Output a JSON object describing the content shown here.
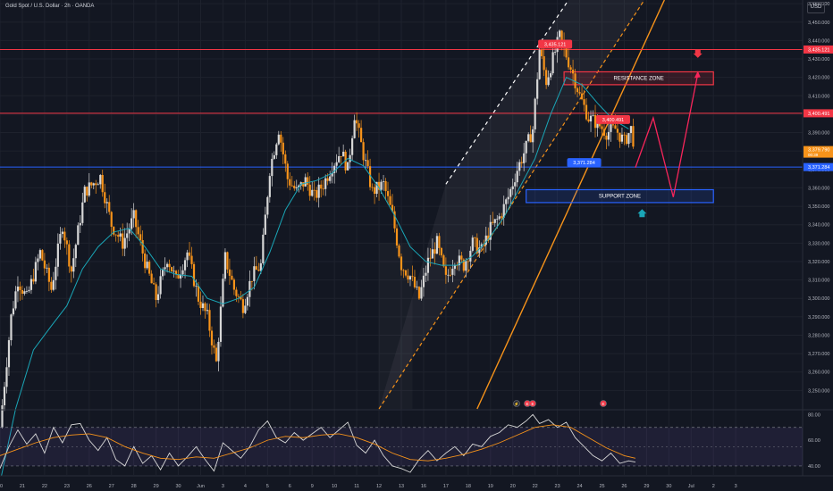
{
  "header": {
    "symbol_title": "Gold Spot / U.S. Dollar · 2h · OANDA",
    "currency": "USD"
  },
  "colors": {
    "background": "#131722",
    "grid": "#1e222d",
    "up_candle": "#d7d7d7",
    "down_candle": "#f7931a",
    "ma_line": "#1aa6b7",
    "red_line": "#f23645",
    "blue_line": "#2962ff",
    "projection": "#f7255a",
    "channel_orange": "#f7931a",
    "channel_white": "#ffffff",
    "rsi_white": "#d7d7d7",
    "rsi_orange": "#f7931a",
    "rsi_band": "#7e57c2"
  },
  "chart_data": [
    {
      "type": "candlestick",
      "title": "Gold Spot / U.S. Dollar · 2h · OANDA",
      "ylim": [
        3240,
        3462
      ],
      "y_ticks": [
        "3,460.000",
        "3,450.000",
        "3,440.000",
        "3,430.000",
        "3,420.000",
        "3,410.000",
        "3,400.000",
        "3,390.000",
        "3,380.000",
        "3,370.000",
        "3,360.000",
        "3,350.000",
        "3,340.000",
        "3,330.000",
        "3,320.000",
        "3,310.000",
        "3,300.000",
        "3,290.000",
        "3,280.000",
        "3,270.000",
        "3,260.000",
        "3,250.000"
      ],
      "x_ticks": [
        "20",
        "21",
        "22",
        "23",
        "26",
        "27",
        "28",
        "29",
        "30",
        "Jun",
        "3",
        "4",
        "5",
        "6",
        "9",
        "10",
        "11",
        "12",
        "13",
        "16",
        "17",
        "18",
        "19",
        "20",
        "22",
        "23",
        "24",
        "25",
        "26",
        "29",
        "30",
        "Jul",
        "2",
        "3"
      ],
      "close_path": [
        [
          20,
          3230
        ],
        [
          20.5,
          3290
        ],
        [
          20.8,
          3310
        ],
        [
          21.2,
          3300
        ],
        [
          21.8,
          3325
        ],
        [
          22.3,
          3305
        ],
        [
          22.8,
          3340
        ],
        [
          23.2,
          3315
        ],
        [
          23.8,
          3358
        ],
        [
          24.5,
          3366
        ],
        [
          25,
          3340
        ],
        [
          25.5,
          3330
        ],
        [
          26,
          3344
        ],
        [
          26.5,
          3320
        ],
        [
          27,
          3300
        ],
        [
          27.5,
          3322
        ],
        [
          27.9,
          3310
        ],
        [
          28.4,
          3325
        ],
        [
          28.9,
          3300
        ],
        [
          29.3,
          3290
        ],
        [
          29.7,
          3265
        ],
        [
          30.1,
          3322
        ],
        [
          30.5,
          3305
        ],
        [
          30.9,
          3296
        ],
        [
          31.3,
          3312
        ],
        [
          31.7,
          3318
        ],
        [
          32.1,
          3370
        ],
        [
          32.5,
          3392
        ],
        [
          32.9,
          3365
        ],
        [
          33.3,
          3358
        ],
        [
          33.7,
          3364
        ],
        [
          34.1,
          3355
        ],
        [
          34.5,
          3362
        ],
        [
          34.9,
          3372
        ],
        [
          35.3,
          3380
        ],
        [
          35.6,
          3370
        ],
        [
          35.9,
          3400
        ],
        [
          36.3,
          3378
        ],
        [
          36.7,
          3358
        ],
        [
          37.2,
          3362
        ],
        [
          37.6,
          3345
        ],
        [
          38,
          3318
        ],
        [
          38.4,
          3312
        ],
        [
          38.8,
          3300
        ],
        [
          39.2,
          3320
        ],
        [
          39.6,
          3330
        ],
        [
          40,
          3310
        ],
        [
          40.4,
          3322
        ],
        [
          40.8,
          3318
        ],
        [
          41.2,
          3330
        ],
        [
          41.6,
          3326
        ],
        [
          42,
          3338
        ],
        [
          42.4,
          3344
        ],
        [
          42.8,
          3355
        ],
        [
          43.2,
          3370
        ],
        [
          43.6,
          3382
        ],
        [
          43.9,
          3392
        ],
        [
          44.2,
          3435
        ],
        [
          44.5,
          3418
        ],
        [
          44.8,
          3430
        ],
        [
          45.1,
          3442
        ],
        [
          45.4,
          3432
        ],
        [
          45.7,
          3422
        ],
        [
          46,
          3410
        ],
        [
          46.4,
          3398
        ],
        [
          46.8,
          3395
        ],
        [
          47.2,
          3390
        ],
        [
          47.6,
          3392
        ],
        [
          48,
          3385
        ],
        [
          48.3,
          3392
        ],
        [
          48.5,
          3380
        ]
      ],
      "moving_average_path": [
        [
          20,
          3200
        ],
        [
          20.7,
          3240
        ],
        [
          21.5,
          3272
        ],
        [
          22.3,
          3285
        ],
        [
          23,
          3296
        ],
        [
          23.7,
          3316
        ],
        [
          24.4,
          3328
        ],
        [
          25.1,
          3336
        ],
        [
          25.8,
          3338
        ],
        [
          26.5,
          3328
        ],
        [
          27.2,
          3316
        ],
        [
          27.9,
          3313
        ],
        [
          28.6,
          3312
        ],
        [
          29.3,
          3300
        ],
        [
          30,
          3297
        ],
        [
          30.7,
          3300
        ],
        [
          31.4,
          3306
        ],
        [
          32.1,
          3325
        ],
        [
          32.8,
          3348
        ],
        [
          33.5,
          3362
        ],
        [
          34.2,
          3364
        ],
        [
          34.9,
          3368
        ],
        [
          35.6,
          3376
        ],
        [
          36.3,
          3372
        ],
        [
          37,
          3360
        ],
        [
          37.7,
          3345
        ],
        [
          38.4,
          3328
        ],
        [
          39.1,
          3320
        ],
        [
          39.8,
          3318
        ],
        [
          40.5,
          3318
        ],
        [
          41.2,
          3323
        ],
        [
          41.9,
          3332
        ],
        [
          42.6,
          3344
        ],
        [
          43.3,
          3360
        ],
        [
          44,
          3376
        ],
        [
          44.7,
          3400
        ],
        [
          45.4,
          3420
        ],
        [
          46.1,
          3416
        ],
        [
          46.8,
          3406
        ],
        [
          47.5,
          3397
        ],
        [
          48.2,
          3392
        ]
      ],
      "horizontal_levels": [
        {
          "price": 3435.121,
          "label": "3,435.121",
          "color": "#f23645"
        },
        {
          "price": 3400.491,
          "label": "3,400.491",
          "color": "#f23645"
        },
        {
          "price": 3371.284,
          "label": "3,371.284",
          "color": "#2962ff"
        }
      ],
      "current_price": {
        "label": "3,379.790",
        "sublabel": "00:39",
        "price": 3379.79
      },
      "zones": [
        {
          "label": "RESISTANCE ZONE",
          "from_x": 45.3,
          "to_x": 52.0,
          "low": 3416,
          "high": 3423,
          "color": "#f23645"
        },
        {
          "label": "SUPPORT ZONE",
          "from_x": 43.6,
          "to_x": 52.0,
          "low": 3352,
          "high": 3359,
          "color": "#2962ff"
        }
      ],
      "projection_path": [
        [
          48.5,
          3371
        ],
        [
          49.3,
          3398
        ],
        [
          50.2,
          3355
        ],
        [
          51.3,
          3422
        ]
      ],
      "channel": {
        "shaded_from": [
          [
            37,
            3240
          ],
          [
            45.4,
            3462
          ]
        ],
        "upper_white": [
          [
            40,
            3362
          ],
          [
            45.5,
            3462
          ]
        ],
        "dashed_orange": [
          [
            37,
            3240
          ],
          [
            48.9,
            3462
          ]
        ],
        "solid_orange": [
          [
            41.4,
            3240
          ],
          [
            49.8,
            3462
          ]
        ]
      },
      "markers": [
        {
          "kind": "arrow-down",
          "x": 51.3,
          "price": 3432,
          "color": "#f23645"
        },
        {
          "kind": "arrow-up",
          "x": 48.8,
          "price": 3347,
          "color": "#1aa6b7"
        }
      ]
    },
    {
      "type": "line",
      "title": "",
      "ylim": [
        33,
        83
      ],
      "y_ticks": [
        "80.00",
        "60.00",
        "40.00"
      ],
      "band": [
        40,
        70
      ],
      "series": [
        {
          "values": [
            [
              20,
              38
            ],
            [
              20.4,
              55
            ],
            [
              20.8,
              68
            ],
            [
              21.2,
              57
            ],
            [
              21.6,
              65
            ],
            [
              22,
              50
            ],
            [
              22.4,
              70
            ],
            [
              22.8,
              58
            ],
            [
              23.2,
              72
            ],
            [
              23.6,
              73
            ],
            [
              24,
              60
            ],
            [
              24.4,
              52
            ],
            [
              24.8,
              62
            ],
            [
              25.2,
              45
            ],
            [
              25.6,
              40
            ],
            [
              26,
              55
            ],
            [
              26.4,
              42
            ],
            [
              26.8,
              48
            ],
            [
              27.2,
              37
            ],
            [
              27.6,
              50
            ],
            [
              28,
              40
            ],
            [
              28.4,
              47
            ],
            [
              28.8,
              55
            ],
            [
              29.2,
              45
            ],
            [
              29.6,
              36
            ],
            [
              30,
              58
            ],
            [
              30.4,
              52
            ],
            [
              30.8,
              46
            ],
            [
              31.2,
              55
            ],
            [
              31.6,
              68
            ],
            [
              32,
              75
            ],
            [
              32.4,
              62
            ],
            [
              32.8,
              58
            ],
            [
              33.2,
              66
            ],
            [
              33.6,
              60
            ],
            [
              34,
              65
            ],
            [
              34.4,
              70
            ],
            [
              34.8,
              62
            ],
            [
              35.2,
              68
            ],
            [
              35.6,
              74
            ],
            [
              36,
              56
            ],
            [
              36.4,
              50
            ],
            [
              36.8,
              60
            ],
            [
              37.2,
              48
            ],
            [
              37.6,
              40
            ],
            [
              38,
              38
            ],
            [
              38.4,
              35
            ],
            [
              38.8,
              45
            ],
            [
              39.2,
              52
            ],
            [
              39.6,
              44
            ],
            [
              40,
              50
            ],
            [
              40.4,
              55
            ],
            [
              40.8,
              48
            ],
            [
              41.2,
              57
            ],
            [
              41.6,
              55
            ],
            [
              42,
              63
            ],
            [
              42.4,
              66
            ],
            [
              42.8,
              72
            ],
            [
              43.2,
              70
            ],
            [
              43.6,
              75
            ],
            [
              43.9,
              80
            ],
            [
              44.2,
              73
            ],
            [
              44.6,
              76
            ],
            [
              45,
              70
            ],
            [
              45.4,
              74
            ],
            [
              45.8,
              62
            ],
            [
              46.2,
              55
            ],
            [
              46.6,
              48
            ],
            [
              47,
              44
            ],
            [
              47.4,
              50
            ],
            [
              47.8,
              42
            ],
            [
              48.2,
              44
            ],
            [
              48.5,
              43
            ]
          ]
        },
        {
          "values": [
            [
              20,
              48
            ],
            [
              20.8,
              53
            ],
            [
              21.6,
              58
            ],
            [
              22.4,
              62
            ],
            [
              23.2,
              64
            ],
            [
              24,
              65
            ],
            [
              24.8,
              62
            ],
            [
              25.6,
              55
            ],
            [
              26.4,
              50
            ],
            [
              27.2,
              46
            ],
            [
              28,
              45
            ],
            [
              28.8,
              47
            ],
            [
              29.6,
              46
            ],
            [
              30.4,
              50
            ],
            [
              31.2,
              54
            ],
            [
              32,
              60
            ],
            [
              32.8,
              63
            ],
            [
              33.6,
              62
            ],
            [
              34.4,
              64
            ],
            [
              35.2,
              65
            ],
            [
              36,
              62
            ],
            [
              36.8,
              57
            ],
            [
              37.6,
              50
            ],
            [
              38.4,
              45
            ],
            [
              39.2,
              44
            ],
            [
              40,
              46
            ],
            [
              40.8,
              49
            ],
            [
              41.6,
              53
            ],
            [
              42.4,
              58
            ],
            [
              43.2,
              64
            ],
            [
              44,
              70
            ],
            [
              44.8,
              72
            ],
            [
              45.6,
              70
            ],
            [
              46.4,
              62
            ],
            [
              47.2,
              54
            ],
            [
              48,
              48
            ],
            [
              48.5,
              46
            ]
          ]
        }
      ],
      "event_icons": [
        "⚡",
        "E",
        "E",
        "E"
      ]
    }
  ]
}
